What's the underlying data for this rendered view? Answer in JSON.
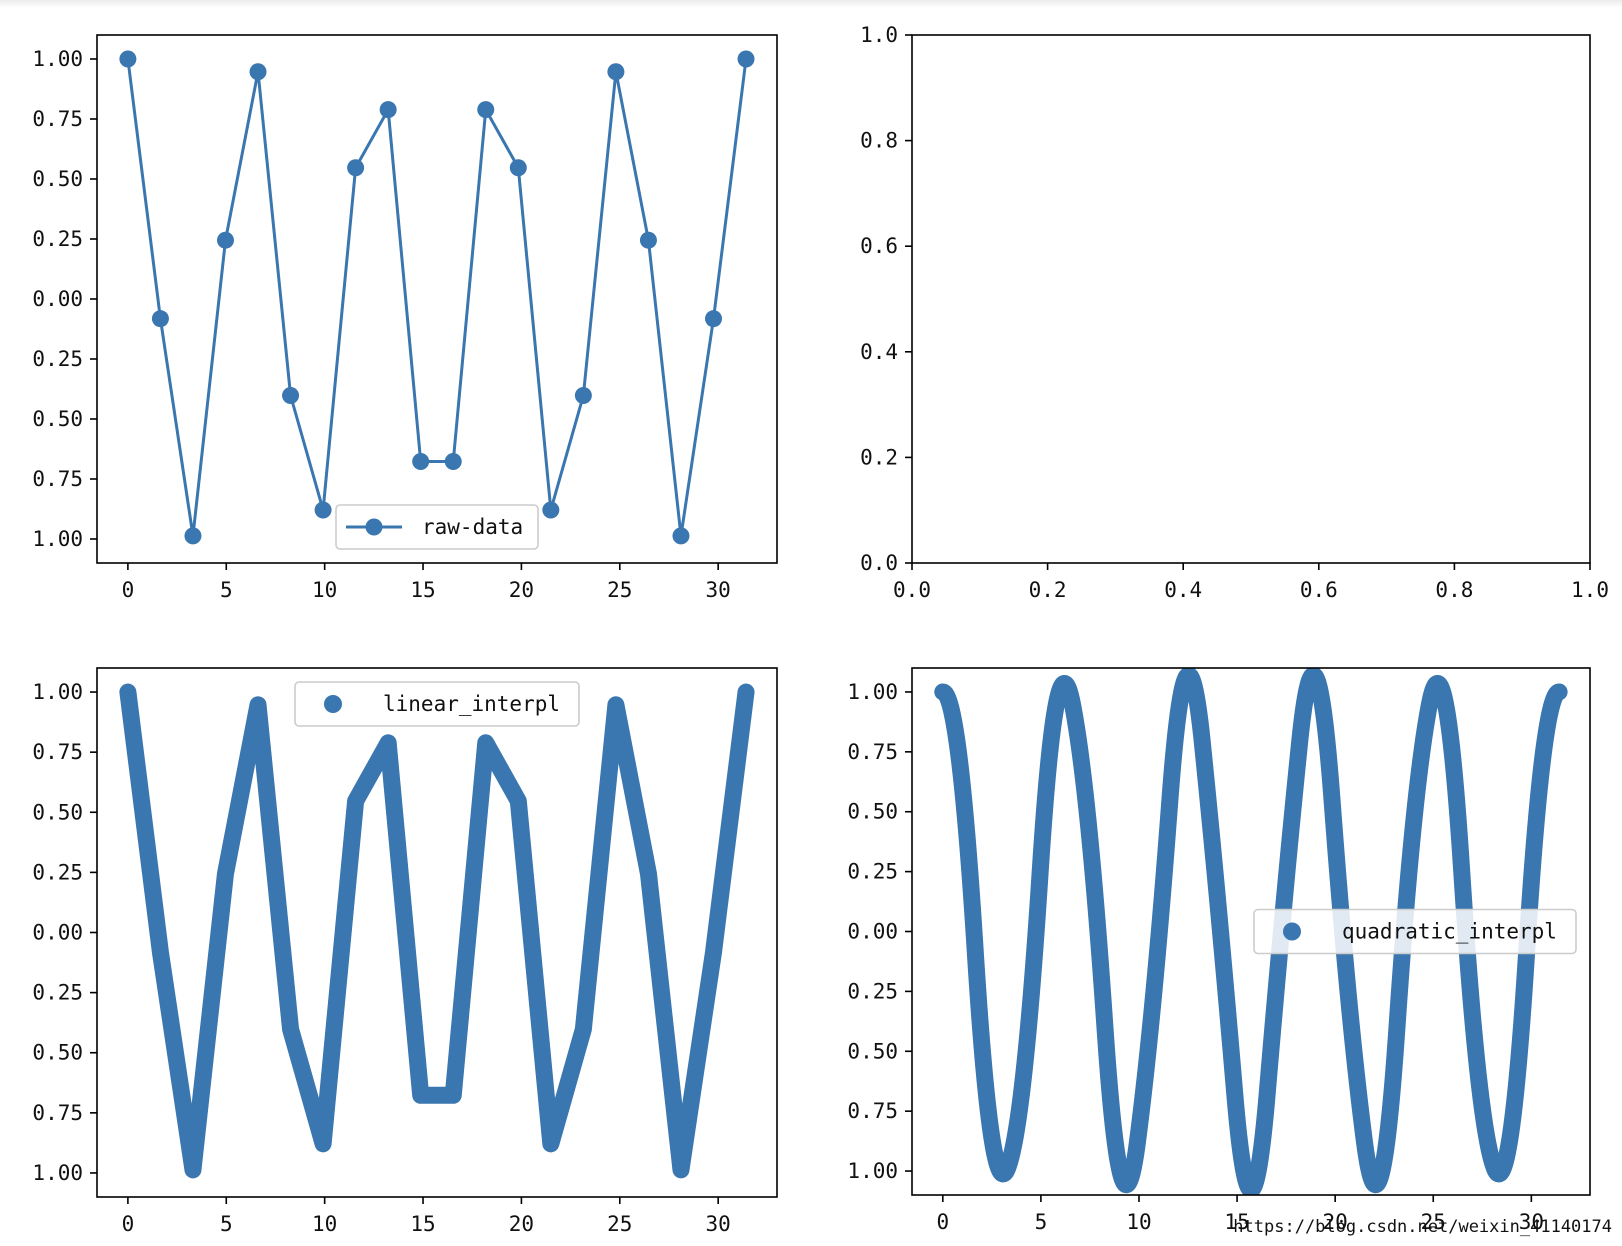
{
  "colors": {
    "series": "#3a76af",
    "axes": "#000000",
    "legend_edge": "#cccccc"
  },
  "watermark": "https://blog.csdn.net/weixin_41140174",
  "chart_data": [
    {
      "id": "raw",
      "type": "line",
      "series": [
        {
          "name": "raw-data",
          "style": "line-with-markers",
          "x": [
            0,
            1.653,
            3.307,
            4.96,
            6.614,
            8.267,
            9.921,
            11.574,
            13.228,
            14.881,
            16.535,
            18.188,
            19.842,
            21.495,
            23.149,
            24.802,
            26.456,
            28.109,
            29.763,
            31.416
          ],
          "y": [
            1.0,
            -0.082,
            -0.987,
            0.245,
            0.947,
            -0.402,
            -0.879,
            0.547,
            0.789,
            -0.677,
            -0.677,
            0.789,
            0.547,
            -0.879,
            -0.402,
            0.947,
            0.245,
            -0.987,
            -0.082,
            1.0
          ]
        }
      ],
      "xlim": [
        -1.57,
        32.99
      ],
      "ylim": [
        -1.1,
        1.1
      ],
      "xticks": [
        0,
        5,
        10,
        15,
        20,
        25,
        30
      ],
      "xtick_labels": [
        "0",
        "5",
        "10",
        "15",
        "20",
        "25",
        "30"
      ],
      "yticks": [
        1.0,
        0.75,
        0.5,
        0.25,
        0.0,
        -0.25,
        -0.5,
        -0.75,
        -1.0
      ],
      "ytick_labels": [
        "1.00",
        "0.75",
        "0.50",
        "0.25",
        "0.00",
        "0.25",
        "0.50",
        "0.75",
        "1.00"
      ],
      "legend": "lower-center"
    },
    {
      "id": "empty",
      "type": "line",
      "series": [],
      "xlim": [
        0,
        1
      ],
      "ylim": [
        0,
        1
      ],
      "xticks": [
        0,
        0.2,
        0.4,
        0.6,
        0.8,
        1.0
      ],
      "xtick_labels": [
        "0.0",
        "0.2",
        "0.4",
        "0.6",
        "0.8",
        "1.0"
      ],
      "yticks": [
        0,
        0.2,
        0.4,
        0.6,
        0.8,
        1.0
      ],
      "ytick_labels": [
        "0.0",
        "0.2",
        "0.4",
        "0.6",
        "0.8",
        "1.0"
      ]
    },
    {
      "id": "linear",
      "type": "line",
      "series": [
        {
          "name": "linear_interpl",
          "style": "thick-linear",
          "x": [
            0,
            1.653,
            3.307,
            4.96,
            6.614,
            8.267,
            9.921,
            11.574,
            13.228,
            14.881,
            16.535,
            18.188,
            19.842,
            21.495,
            23.149,
            24.802,
            26.456,
            28.109,
            29.763,
            31.416
          ],
          "y": [
            1.0,
            -0.082,
            -0.987,
            0.245,
            0.947,
            -0.402,
            -0.879,
            0.547,
            0.789,
            -0.677,
            -0.677,
            0.789,
            0.547,
            -0.879,
            -0.402,
            0.947,
            0.245,
            -0.987,
            -0.082,
            1.0
          ]
        }
      ],
      "xlim": [
        -1.57,
        32.99
      ],
      "ylim": [
        -1.1,
        1.1
      ],
      "xticks": [
        0,
        5,
        10,
        15,
        20,
        25,
        30
      ],
      "xtick_labels": [
        "0",
        "5",
        "10",
        "15",
        "20",
        "25",
        "30"
      ],
      "yticks": [
        1.0,
        0.75,
        0.5,
        0.25,
        0.0,
        -0.25,
        -0.5,
        -0.75,
        -1.0
      ],
      "ytick_labels": [
        "1.00",
        "0.75",
        "0.50",
        "0.25",
        "0.00",
        "0.25",
        "0.50",
        "0.75",
        "1.00"
      ],
      "legend": "upper-center"
    },
    {
      "id": "quadratic",
      "type": "line",
      "series": [
        {
          "name": "quadratic_interpl",
          "style": "thick-smooth",
          "x": [
            0,
            1.653,
            3.307,
            4.96,
            6.614,
            8.267,
            9.921,
            11.574,
            13.228,
            14.881,
            16.535,
            18.188,
            19.842,
            21.495,
            23.149,
            24.802,
            26.456,
            28.109,
            29.763,
            31.416
          ],
          "y": [
            1.0,
            -0.082,
            -0.987,
            0.245,
            0.947,
            -0.402,
            -0.879,
            0.547,
            0.789,
            -0.677,
            -0.677,
            0.789,
            0.547,
            -0.879,
            -0.402,
            0.947,
            0.245,
            -0.987,
            -0.082,
            1.0
          ]
        }
      ],
      "xlim": [
        -1.57,
        32.99
      ],
      "ylim": [
        -1.1,
        1.1
      ],
      "xticks": [
        0,
        5,
        10,
        15,
        20,
        25,
        30
      ],
      "xtick_labels": [
        "0",
        "5",
        "10",
        "15",
        "20",
        "25",
        "30"
      ],
      "yticks": [
        1.0,
        0.75,
        0.5,
        0.25,
        0.0,
        -0.25,
        -0.5,
        -0.75,
        -1.0
      ],
      "ytick_labels": [
        "1.00",
        "0.75",
        "0.50",
        "0.25",
        "0.00",
        "0.25",
        "0.50",
        "0.75",
        "1.00"
      ],
      "legend": "center-right"
    }
  ]
}
